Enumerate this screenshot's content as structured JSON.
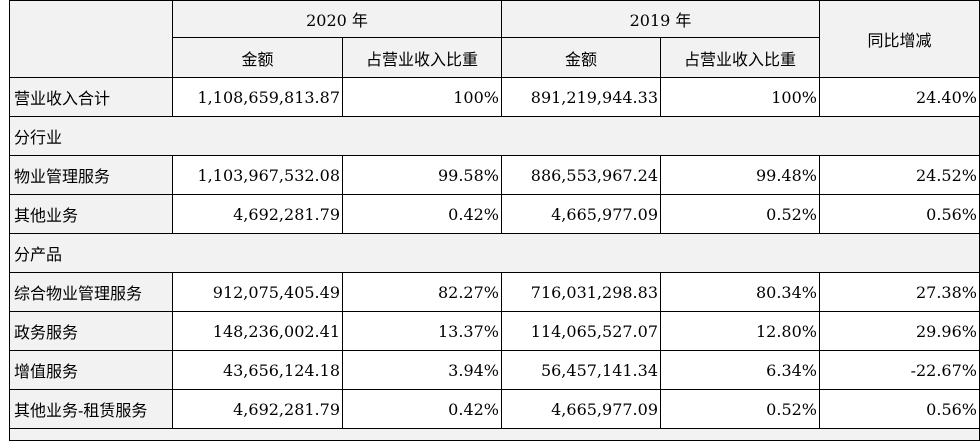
{
  "header": {
    "year_2020": "2020 年",
    "year_2019": "2019 年",
    "yoy": "同比增减",
    "amount": "金额",
    "ratio": "占营业收入比重"
  },
  "rows": [
    {
      "label": "营业收入合计",
      "amt2020": "1,108,659,813.87",
      "pct2020": "100%",
      "amt2019": "891,219,944.33",
      "pct2019": "100%",
      "yoy": "24.40%"
    },
    {
      "section": "分行业"
    },
    {
      "label": "物业管理服务",
      "amt2020": "1,103,967,532.08",
      "pct2020": "99.58%",
      "amt2019": "886,553,967.24",
      "pct2019": "99.48%",
      "yoy": "24.52%"
    },
    {
      "label": "其他业务",
      "amt2020": "4,692,281.79",
      "pct2020": "0.42%",
      "amt2019": "4,665,977.09",
      "pct2019": "0.52%",
      "yoy": "0.56%"
    },
    {
      "section": "分产品"
    },
    {
      "label": "综合物业管理服务",
      "amt2020": "912,075,405.49",
      "pct2020": "82.27%",
      "amt2019": "716,031,298.83",
      "pct2019": "80.34%",
      "yoy": "27.38%"
    },
    {
      "label": "政务服务",
      "amt2020": "148,236,002.41",
      "pct2020": "13.37%",
      "amt2019": "114,065,527.07",
      "pct2019": "12.80%",
      "yoy": "29.96%"
    },
    {
      "label": "增值服务",
      "amt2020": "43,656,124.18",
      "pct2020": "3.94%",
      "amt2019": "56,457,141.34",
      "pct2019": "6.34%",
      "yoy": "-22.67%"
    },
    {
      "label": "其他业务-租赁服务",
      "amt2020": "4,692,281.79",
      "pct2020": "0.42%",
      "amt2019": "4,665,977.09",
      "pct2019": "0.52%",
      "yoy": "0.56%"
    }
  ]
}
